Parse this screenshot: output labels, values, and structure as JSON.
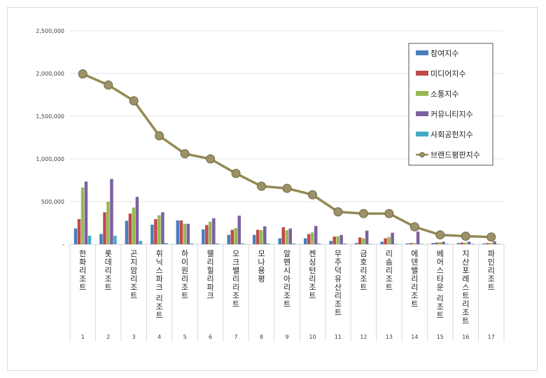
{
  "chart_data": {
    "type": "bar",
    "ylim": [
      0,
      2500000
    ],
    "y_ticks": [
      "2,500,000",
      "2,000,000",
      "1,500,000",
      "1,000,000",
      "500,000",
      "-"
    ],
    "grid": true,
    "legend_position": "top-right",
    "numbers": [
      "1",
      "2",
      "3",
      "4",
      "5",
      "6",
      "7",
      "8",
      "9",
      "10",
      "11",
      "12",
      "13",
      "14",
      "15",
      "16",
      "17"
    ],
    "categories": [
      "한화리조트",
      "롯데리조트",
      "곤지암리조트",
      "휘닉스파크 리조트",
      "하이원리조트",
      "웰리힐리파크",
      "오크밸리리조트",
      "모나용평",
      "알펜시아리조트",
      "켄싱턴리조트",
      "무주덕유산리조트",
      "금호리조트",
      "리솜리조트",
      "에덴밸리리조트",
      "베어스타운 리조트",
      "지산포레스트리조트",
      "파인리조트"
    ],
    "series": [
      {
        "name": "참여지수",
        "color": "#4a7ebb",
        "values": [
          185000,
          120000,
          275000,
          230000,
          280000,
          175000,
          110000,
          110000,
          70000,
          70000,
          40000,
          15000,
          30000,
          10000,
          15000,
          15000,
          10000
        ]
      },
      {
        "name": "미디어지수",
        "color": "#be4b48",
        "values": [
          295000,
          375000,
          360000,
          295000,
          280000,
          225000,
          170000,
          170000,
          200000,
          120000,
          90000,
          80000,
          70000,
          15000,
          20000,
          20000,
          15000
        ]
      },
      {
        "name": "소통지수",
        "color": "#98b954",
        "values": [
          665000,
          500000,
          430000,
          340000,
          240000,
          265000,
          190000,
          165000,
          165000,
          140000,
          95000,
          70000,
          85000,
          15000,
          25000,
          20000,
          15000
        ]
      },
      {
        "name": "커뮤니티지수",
        "color": "#7d60a0",
        "values": [
          735000,
          765000,
          555000,
          375000,
          240000,
          305000,
          335000,
          210000,
          185000,
          215000,
          110000,
          160000,
          135000,
          150000,
          30000,
          30000,
          35000
        ]
      },
      {
        "name": "사회공헌지수",
        "color": "#46aac5",
        "values": [
          100000,
          100000,
          40000,
          15000,
          10000,
          10000,
          10000,
          10000,
          10000,
          10000,
          10000,
          5000,
          5000,
          5000,
          5000,
          5000,
          5000
        ]
      }
    ],
    "line_series": {
      "name": "브랜드평판지수",
      "color": "#948a54",
      "marker_color": "#9c9267",
      "values": [
        1995000,
        1865000,
        1680000,
        1270000,
        1060000,
        1000000,
        830000,
        680000,
        655000,
        580000,
        380000,
        360000,
        360000,
        205000,
        110000,
        95000,
        85000
      ]
    }
  }
}
